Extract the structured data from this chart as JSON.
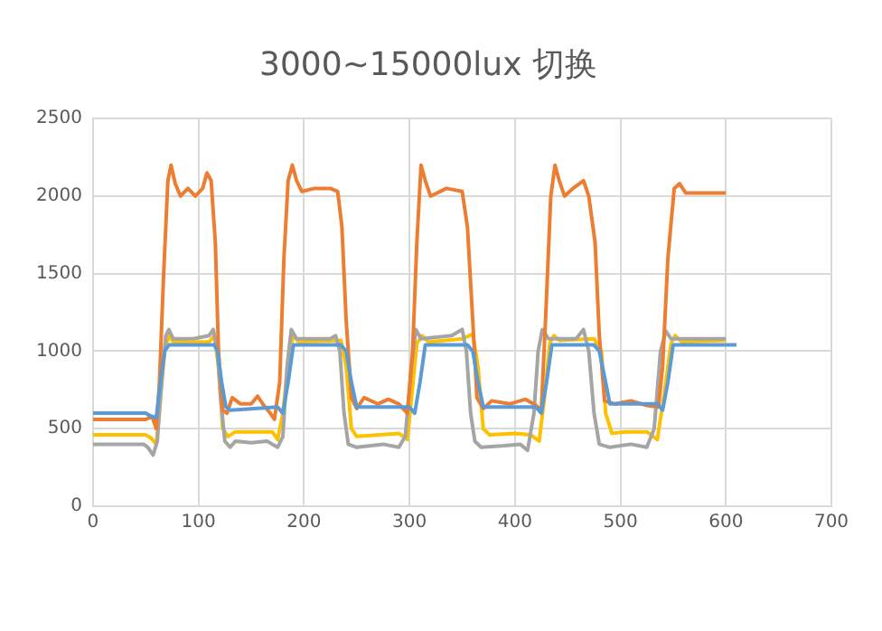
{
  "chart_data": {
    "type": "line",
    "title": "3000~15000lux 切换",
    "xlim": [
      0,
      700
    ],
    "xticks": [
      0,
      100,
      200,
      300,
      400,
      500,
      600,
      700
    ],
    "ylim": [
      0,
      2500
    ],
    "yticks": [
      0,
      500,
      1000,
      1500,
      2000,
      2500
    ],
    "grid": true,
    "legend": false,
    "marker": "none",
    "line_style": "solid",
    "series": [
      {
        "color": "#5b9bd5",
        "x": [
          0,
          50,
          55,
          60,
          64,
          68,
          72,
          115,
          118,
          122,
          126,
          130,
          175,
          180,
          185,
          190,
          235,
          240,
          245,
          250,
          300,
          305,
          310,
          315,
          355,
          360,
          365,
          370,
          420,
          425,
          430,
          435,
          475,
          480,
          486,
          490,
          535,
          540,
          545,
          550,
          610
        ],
        "values": [
          600,
          600,
          580,
          570,
          800,
          1000,
          1040,
          1040,
          1000,
          800,
          640,
          620,
          640,
          600,
          800,
          1040,
          1040,
          1000,
          800,
          640,
          640,
          600,
          800,
          1040,
          1040,
          1000,
          800,
          640,
          640,
          600,
          800,
          1040,
          1040,
          1000,
          800,
          660,
          660,
          620,
          800,
          1040,
          1040
        ]
      },
      {
        "color": "#ed7d31",
        "x": [
          0,
          50,
          56,
          60,
          63,
          67,
          71,
          74,
          78,
          83,
          90,
          97,
          104,
          108,
          112,
          116,
          119,
          123,
          127,
          132,
          140,
          150,
          156,
          162,
          168,
          172,
          177,
          181,
          185,
          189,
          193,
          198,
          210,
          225,
          232,
          236,
          240,
          245,
          250,
          257,
          270,
          280,
          290,
          298,
          303,
          307,
          311,
          315,
          320,
          335,
          350,
          355,
          360,
          364,
          370,
          378,
          395,
          410,
          420,
          425,
          429,
          434,
          438,
          442,
          447,
          455,
          465,
          470,
          476,
          480,
          485,
          495,
          510,
          525,
          536,
          540,
          545,
          551,
          556,
          562,
          600
        ],
        "values": [
          560,
          560,
          580,
          500,
          800,
          1500,
          2100,
          2200,
          2080,
          2000,
          2050,
          2000,
          2050,
          2150,
          2100,
          1700,
          1000,
          620,
          600,
          700,
          660,
          660,
          710,
          650,
          600,
          560,
          800,
          1600,
          2100,
          2200,
          2100,
          2030,
          2050,
          2050,
          2030,
          1800,
          1200,
          700,
          630,
          700,
          660,
          690,
          660,
          600,
          1000,
          1700,
          2200,
          2100,
          2000,
          2050,
          2030,
          1800,
          1200,
          700,
          630,
          680,
          660,
          690,
          650,
          620,
          1200,
          2000,
          2200,
          2100,
          2000,
          2050,
          2100,
          2000,
          1700,
          1100,
          680,
          660,
          680,
          650,
          640,
          900,
          1600,
          2050,
          2080,
          2020,
          2020
        ]
      },
      {
        "color": "#a5a5a5",
        "x": [
          0,
          48,
          52,
          57,
          61,
          65,
          69,
          72,
          76,
          95,
          110,
          114,
          118,
          121,
          125,
          130,
          135,
          150,
          165,
          175,
          180,
          184,
          188,
          193,
          225,
          230,
          234,
          238,
          242,
          250,
          275,
          290,
          296,
          302,
          306,
          311,
          340,
          350,
          354,
          358,
          362,
          368,
          390,
          405,
          412,
          418,
          422,
          426,
          432,
          458,
          465,
          470,
          475,
          480,
          490,
          510,
          525,
          532,
          538,
          543,
          548,
          600
        ],
        "values": [
          400,
          400,
          380,
          330,
          420,
          800,
          1100,
          1140,
          1080,
          1080,
          1100,
          1140,
          1000,
          700,
          420,
          380,
          420,
          410,
          420,
          380,
          450,
          900,
          1140,
          1080,
          1080,
          1100,
          1000,
          600,
          400,
          380,
          400,
          380,
          450,
          900,
          1140,
          1080,
          1100,
          1140,
          1000,
          600,
          420,
          380,
          390,
          400,
          360,
          600,
          1000,
          1140,
          1080,
          1080,
          1140,
          1000,
          600,
          400,
          380,
          400,
          380,
          500,
          1000,
          1130,
          1080,
          1080
        ]
      },
      {
        "color": "#ffc000",
        "x": [
          0,
          50,
          55,
          60,
          64,
          68,
          72,
          76,
          110,
          115,
          119,
          123,
          128,
          135,
          170,
          175,
          180,
          186,
          190,
          195,
          235,
          240,
          245,
          250,
          290,
          298,
          302,
          307,
          312,
          318,
          350,
          360,
          365,
          370,
          376,
          400,
          415,
          423,
          428,
          433,
          437,
          442,
          475,
          482,
          486,
          492,
          505,
          525,
          535,
          541,
          548,
          552,
          558,
          600
        ],
        "values": [
          460,
          460,
          440,
          400,
          700,
          1000,
          1100,
          1060,
          1060,
          1100,
          900,
          500,
          450,
          480,
          480,
          430,
          600,
          1000,
          1100,
          1060,
          1070,
          900,
          500,
          450,
          470,
          430,
          700,
          1050,
          1100,
          1060,
          1080,
          1110,
          900,
          500,
          460,
          470,
          460,
          420,
          700,
          1050,
          1100,
          1070,
          1080,
          1000,
          600,
          470,
          480,
          480,
          430,
          700,
          1050,
          1100,
          1060,
          1070
        ]
      }
    ]
  }
}
